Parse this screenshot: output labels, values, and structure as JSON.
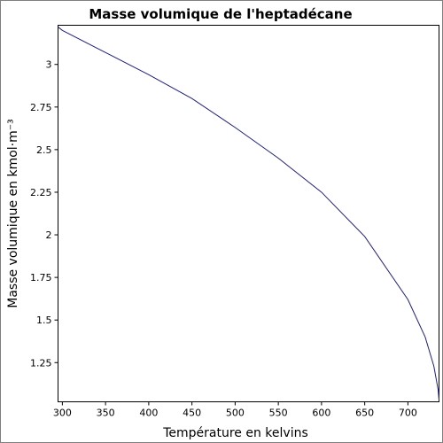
{
  "chart_data": {
    "type": "line",
    "title": "Masse volumique de l'heptadécane",
    "xlabel": "Température en kelvins",
    "ylabel": "Masse volumique en kmol·m⁻³",
    "xlim": [
      295,
      736
    ],
    "ylim": [
      1.02,
      3.23
    ],
    "xticks": [
      300,
      350,
      400,
      450,
      500,
      550,
      600,
      650,
      700
    ],
    "yticks": [
      1.25,
      1.5,
      1.75,
      2,
      2.25,
      2.5,
      2.75,
      3
    ],
    "ytick_labels": [
      "1.25",
      "1.5",
      "1.75",
      "2",
      "2.25",
      "2.5",
      "2.75",
      "3"
    ],
    "grid": false,
    "series": [
      {
        "color": "#1f1f7a",
        "x": [
          295,
          300,
          350,
          400,
          450,
          500,
          550,
          600,
          650,
          700,
          720,
          730,
          735,
          736
        ],
        "y": [
          3.22,
          3.2,
          3.07,
          2.94,
          2.8,
          2.63,
          2.45,
          2.25,
          1.99,
          1.62,
          1.4,
          1.23,
          1.09,
          1.03
        ]
      }
    ]
  }
}
